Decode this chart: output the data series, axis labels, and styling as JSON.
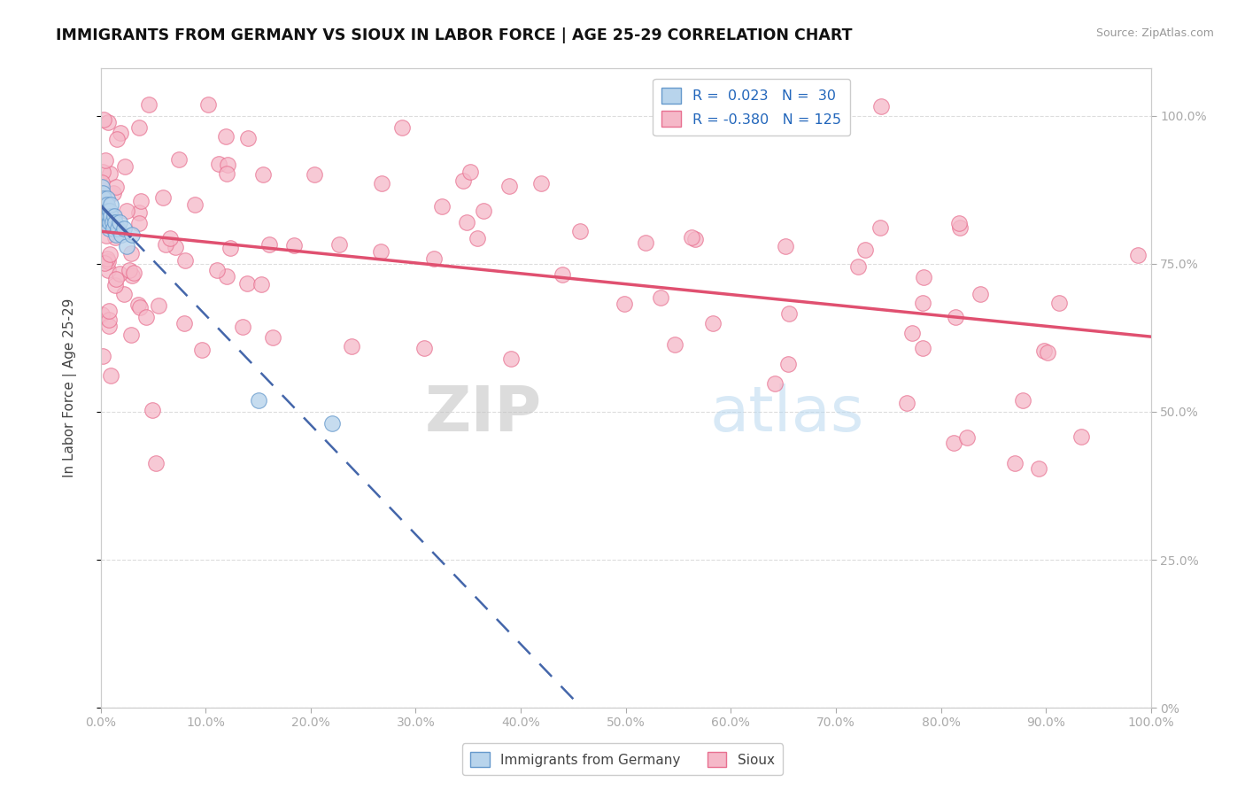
{
  "title": "IMMIGRANTS FROM GERMANY VS SIOUX IN LABOR FORCE | AGE 25-29 CORRELATION CHART",
  "source": "Source: ZipAtlas.com",
  "ylabel": "In Labor Force | Age 25-29",
  "xlim": [
    0.0,
    1.0
  ],
  "ylim": [
    0.0,
    1.08
  ],
  "germany_R": 0.023,
  "germany_N": 30,
  "sioux_R": -0.38,
  "sioux_N": 125,
  "germany_color": "#b8d4ec",
  "sioux_color": "#f5b8c8",
  "germany_edge_color": "#6699cc",
  "sioux_edge_color": "#e87090",
  "germany_line_color": "#4466aa",
  "sioux_line_color": "#e05070",
  "ytick_values": [
    0.0,
    0.25,
    0.5,
    0.75,
    1.0
  ],
  "ytick_labels": [
    "0%",
    "25.0%",
    "50.0%",
    "75.0%",
    "100.0%"
  ],
  "xtick_values": [
    0.0,
    0.1,
    0.2,
    0.3,
    0.4,
    0.5,
    0.6,
    0.7,
    0.8,
    0.9,
    1.0
  ],
  "xtick_labels": [
    "0.0%",
    "10.0%",
    "20.0%",
    "30.0%",
    "40.0%",
    "50.0%",
    "60.0%",
    "70.0%",
    "80.0%",
    "90.0%",
    "100.0%"
  ],
  "watermark_zip": "ZIP",
  "watermark_atlas": "atlas",
  "background_color": "#ffffff",
  "grid_color": "#dddddd",
  "legend_R_label_germany": "R =  0.023   N =  30",
  "legend_R_label_sioux": "R = -0.380   N = 125",
  "legend_bottom_germany": "Immigrants from Germany",
  "legend_bottom_sioux": "Sioux"
}
